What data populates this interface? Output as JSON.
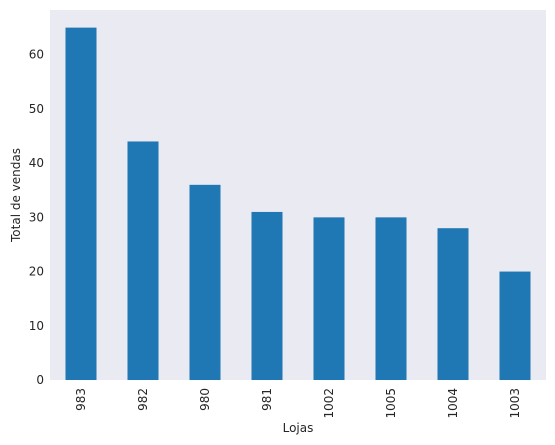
{
  "chart_data": {
    "type": "bar",
    "categories": [
      "983",
      "982",
      "980",
      "981",
      "1002",
      "1005",
      "1004",
      "1003"
    ],
    "values": [
      65,
      44,
      36,
      31,
      30,
      30,
      28,
      20
    ],
    "title": "",
    "xlabel": "Lojas",
    "ylabel": "Total de vendas",
    "ylim": [
      0,
      68.25
    ],
    "yticks": [
      0,
      10,
      20,
      30,
      40,
      50,
      60
    ],
    "grid": false,
    "bar_color": "#1f77b4",
    "background_color": "#eaeaf2"
  }
}
